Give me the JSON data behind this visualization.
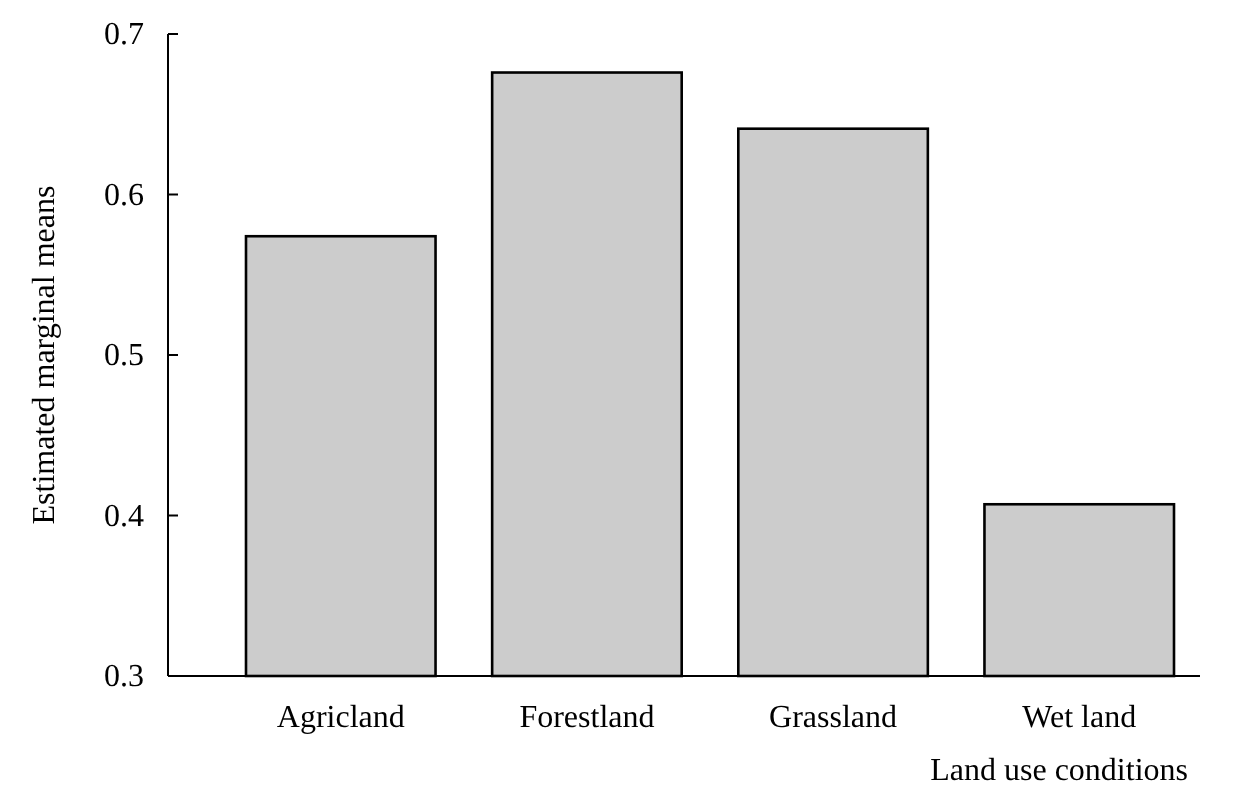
{
  "chart_data": {
    "type": "bar",
    "xlabel": "Land use conditions",
    "ylabel": "Estimated marginal means",
    "categories": [
      "Agricland",
      "Forestland",
      "Grassland",
      "Wet land"
    ],
    "values": [
      0.574,
      0.676,
      0.641,
      0.407
    ],
    "color": "#cccccc",
    "ylim": [
      0.3,
      0.7
    ],
    "yticks": [
      0.3,
      0.4,
      0.5,
      0.6,
      0.7
    ],
    "grid": false
  }
}
